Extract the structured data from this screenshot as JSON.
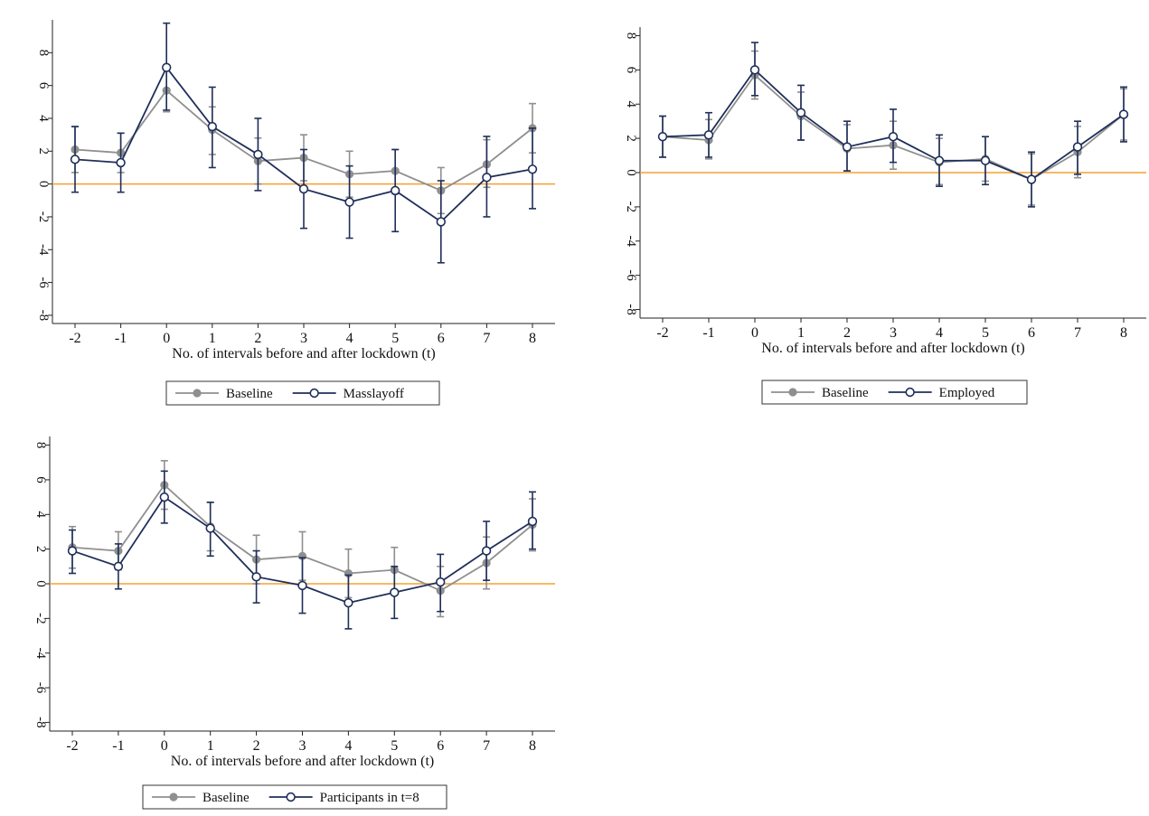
{
  "colors": {
    "baseline": "#8f8f8f",
    "comparison": "#1f2f5a",
    "zero_line": "#f5a030",
    "axis": "#222222"
  },
  "chart_data": [
    {
      "type": "line",
      "xlabel": "No. of intervals before and after lockdown (t)",
      "ylabel": "",
      "x": [
        -2,
        -1,
        0,
        1,
        2,
        3,
        4,
        5,
        6,
        7,
        8
      ],
      "x_ticks": [
        "-2",
        "-1",
        "0",
        "1",
        "2",
        "3",
        "4",
        "5",
        "6",
        "7",
        "8"
      ],
      "y_ticks": [
        "-8",
        "-6",
        "-4",
        "-2",
        "0",
        "2",
        "4",
        "6",
        "8"
      ],
      "ylim": [
        -8.5,
        10
      ],
      "reference_line_y": 0,
      "legend": {
        "position": "bottom-center"
      },
      "series": [
        {
          "name": "Baseline",
          "values": [
            2.1,
            1.9,
            5.7,
            3.3,
            1.4,
            1.6,
            0.6,
            0.8,
            -0.4,
            1.2,
            3.4
          ],
          "ci_low": [
            0.7,
            0.7,
            4.4,
            1.8,
            0.0,
            0.2,
            -0.8,
            -0.6,
            -1.8,
            -0.2,
            1.9
          ],
          "ci_high": [
            3.5,
            3.1,
            7.0,
            4.7,
            2.8,
            3.0,
            2.0,
            2.1,
            1.0,
            2.7,
            4.9
          ]
        },
        {
          "name": "Masslayoff",
          "values": [
            1.5,
            1.3,
            7.1,
            3.5,
            1.8,
            -0.3,
            -1.1,
            -0.4,
            -2.3,
            0.4,
            0.9
          ],
          "ci_low": [
            -0.5,
            -0.5,
            4.5,
            1.0,
            -0.4,
            -2.7,
            -3.3,
            -2.9,
            -4.8,
            -2.0,
            -1.5
          ],
          "ci_high": [
            3.5,
            3.1,
            9.8,
            5.9,
            4.0,
            2.1,
            1.1,
            2.1,
            0.2,
            2.9,
            3.4
          ]
        }
      ]
    },
    {
      "type": "line",
      "xlabel": "No. of intervals before and after lockdown (t)",
      "ylabel": "",
      "x": [
        -2,
        -1,
        0,
        1,
        2,
        3,
        4,
        5,
        6,
        7,
        8
      ],
      "x_ticks": [
        "-2",
        "-1",
        "0",
        "1",
        "2",
        "3",
        "4",
        "5",
        "6",
        "7",
        "8"
      ],
      "y_ticks": [
        "-8",
        "-6",
        "-4",
        "-2",
        "0",
        "2",
        "4",
        "6",
        "8"
      ],
      "ylim": [
        -8.5,
        8.5
      ],
      "reference_line_y": 0,
      "legend": {
        "position": "bottom-center"
      },
      "series": [
        {
          "name": "Baseline",
          "values": [
            2.1,
            1.9,
            5.7,
            3.3,
            1.4,
            1.6,
            0.6,
            0.8,
            -0.4,
            1.2,
            3.4
          ],
          "ci_low": [
            0.9,
            0.8,
            4.3,
            1.9,
            0.1,
            0.2,
            -0.7,
            -0.5,
            -1.9,
            -0.3,
            1.9
          ],
          "ci_high": [
            3.3,
            3.1,
            7.1,
            4.7,
            2.8,
            3.0,
            2.0,
            2.1,
            1.1,
            2.7,
            4.9
          ]
        },
        {
          "name": "Employed",
          "values": [
            2.1,
            2.2,
            6.0,
            3.5,
            1.5,
            2.1,
            0.7,
            0.7,
            -0.4,
            1.5,
            3.4
          ],
          "ci_low": [
            0.9,
            0.9,
            4.5,
            1.9,
            0.1,
            0.6,
            -0.8,
            -0.7,
            -2.0,
            -0.1,
            1.8
          ],
          "ci_high": [
            3.3,
            3.5,
            7.6,
            5.1,
            3.0,
            3.7,
            2.2,
            2.1,
            1.2,
            3.0,
            5.0
          ]
        }
      ]
    },
    {
      "type": "line",
      "xlabel": "No. of intervals before and after lockdown (t)",
      "ylabel": "",
      "x": [
        -2,
        -1,
        0,
        1,
        2,
        3,
        4,
        5,
        6,
        7,
        8
      ],
      "x_ticks": [
        "-2",
        "-1",
        "0",
        "1",
        "2",
        "3",
        "4",
        "5",
        "6",
        "7",
        "8"
      ],
      "y_ticks": [
        "-8",
        "-6",
        "-4",
        "-2",
        "0",
        "2",
        "4",
        "6",
        "8"
      ],
      "ylim": [
        -8.5,
        8.5
      ],
      "reference_line_y": 0,
      "legend": {
        "position": "bottom-center"
      },
      "series": [
        {
          "name": "Baseline",
          "values": [
            2.1,
            1.9,
            5.7,
            3.3,
            1.4,
            1.6,
            0.6,
            0.8,
            -0.4,
            1.2,
            3.4
          ],
          "ci_low": [
            0.9,
            0.8,
            4.3,
            1.9,
            0.0,
            0.2,
            -0.8,
            -0.6,
            -1.9,
            -0.3,
            1.9
          ],
          "ci_high": [
            3.3,
            3.0,
            7.1,
            4.7,
            2.8,
            3.0,
            2.0,
            2.1,
            1.0,
            2.7,
            4.9
          ]
        },
        {
          "name": "Participants in t=8",
          "values": [
            1.9,
            1.0,
            5.0,
            3.2,
            0.4,
            -0.1,
            -1.1,
            -0.5,
            0.1,
            1.9,
            3.6
          ],
          "ci_low": [
            0.6,
            -0.3,
            3.5,
            1.6,
            -1.1,
            -1.7,
            -2.6,
            -2.0,
            -1.6,
            0.2,
            2.0
          ],
          "ci_high": [
            3.1,
            2.3,
            6.5,
            4.7,
            1.9,
            1.5,
            0.5,
            1.0,
            1.7,
            3.6,
            5.3
          ]
        }
      ]
    }
  ]
}
